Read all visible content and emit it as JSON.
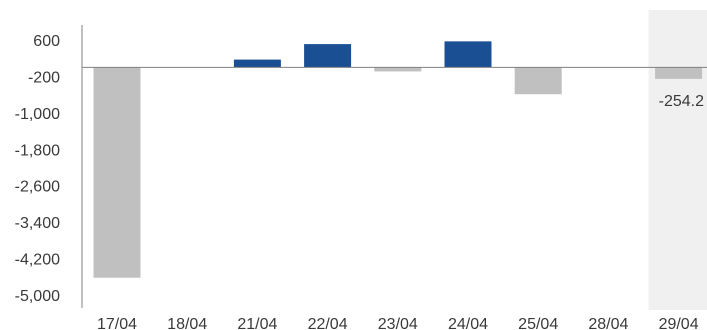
{
  "colors": {
    "positive": "#1b4f93",
    "negative": "#c0c0c0",
    "highlight_band": "#f0f0f0",
    "axis": "#808080",
    "text": "#3a3a3a"
  },
  "chart_data": {
    "type": "bar",
    "categories": [
      "17/04",
      "18/04",
      "21/04",
      "22/04",
      "23/04",
      "24/04",
      "25/04",
      "28/04",
      "29/04"
    ],
    "values": [
      -4620,
      0,
      170,
      510,
      -90,
      570,
      -590,
      0,
      -254.2
    ],
    "y_ticks": [
      "600",
      "-200",
      "-1,000",
      "-1,800",
      "-2,600",
      "-3,400",
      "-4,200",
      "-5,000"
    ],
    "y_tick_values": [
      600,
      -200,
      -1000,
      -1800,
      -2600,
      -3400,
      -4200,
      -5000
    ],
    "ylim": [
      -5000,
      600
    ],
    "highlighted_category": "29/04",
    "data_labels": [
      {
        "category": "29/04",
        "text": "-254.2"
      }
    ],
    "grid": false,
    "legend": "none",
    "title": "",
    "xlabel": "",
    "ylabel": ""
  }
}
